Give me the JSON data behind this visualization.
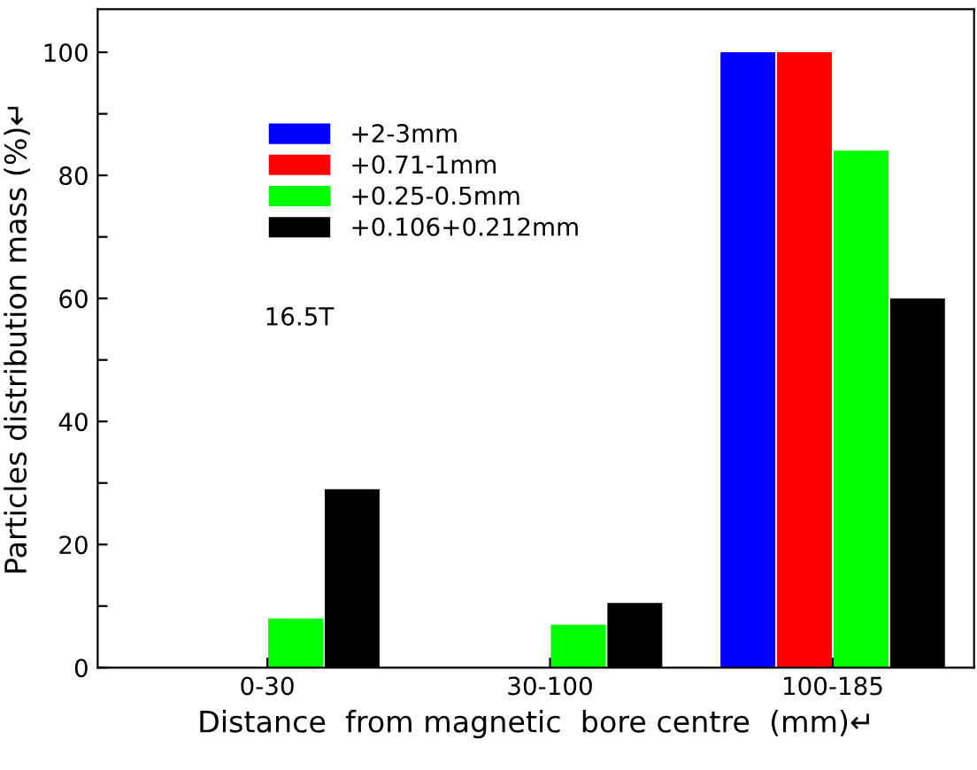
{
  "chart_data": {
    "type": "bar",
    "xlabel": "Distance  from magnetic  bore centre  (mm)↵",
    "ylabel": "Particles distribution mass (%)↵",
    "categories": [
      "0-30",
      "30-100",
      "100-185"
    ],
    "series": [
      {
        "name": "+2-3mm",
        "color": "#0000ff",
        "values": [
          0,
          0,
          100
        ]
      },
      {
        "name": "+0.71-1mm",
        "color": "#ff0000",
        "values": [
          0,
          0,
          100
        ]
      },
      {
        "name": "+0.25-0.5mm",
        "color": "#00ff00",
        "values": [
          8,
          7,
          84
        ]
      },
      {
        "name": "+0.106+0.212mm",
        "color": "#000000",
        "values": [
          29,
          10.5,
          60
        ]
      }
    ],
    "ylim": [
      0,
      107
    ],
    "yticks": [
      0,
      {
        "value": 10,
        "label": null
      },
      20,
      {
        "value": 30,
        "label": null
      },
      40,
      {
        "value": 50,
        "label": null
      },
      60,
      {
        "value": 70,
        "label": null
      },
      80,
      {
        "value": 90,
        "label": null
      },
      100
    ],
    "annotations": [
      "16.5T"
    ],
    "legend": "top left",
    "grid": false
  }
}
